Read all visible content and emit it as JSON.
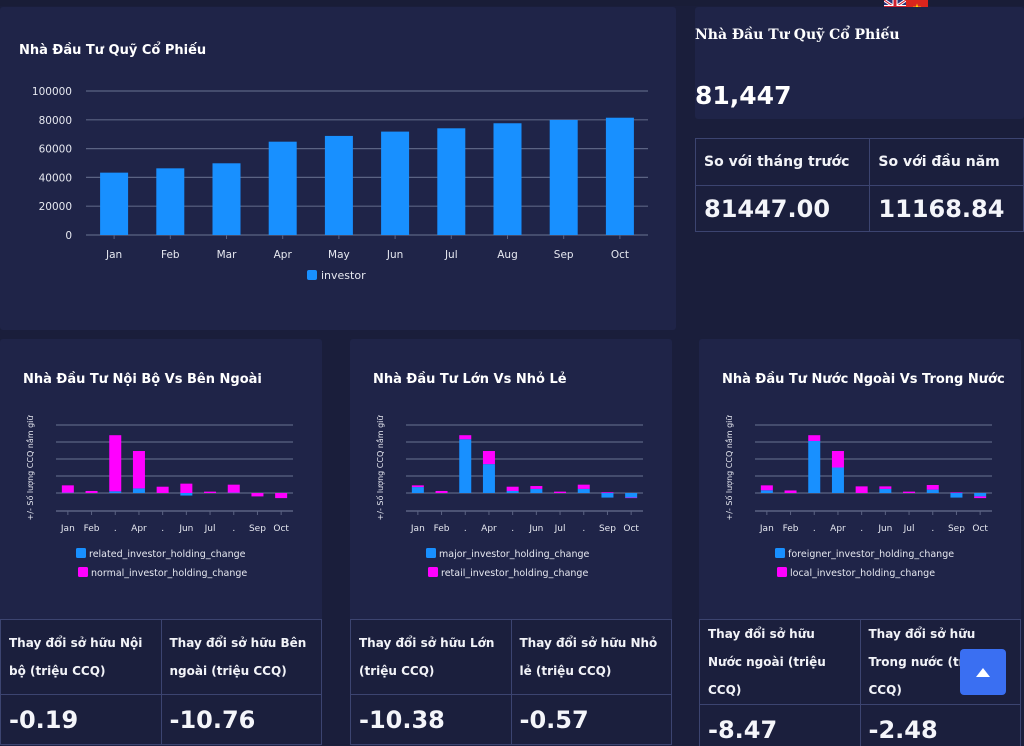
{
  "language_switch": [
    {
      "label": "English",
      "icon": "uk-flag-icon"
    },
    {
      "label": "Tiếng Việt",
      "icon": "vietnam-flag-icon"
    }
  ],
  "main_chart": {
    "title": "Nhà Đầu Tư Quỹ Cổ Phiếu"
  },
  "summary": {
    "title": "Nhà Đầu Tư Quỹ Cổ Phiếu",
    "value": "81,447",
    "table": {
      "headers": [
        "So với tháng trước",
        "So với đầu năm"
      ],
      "values": [
        "81447.00",
        "11168.84"
      ]
    }
  },
  "cards": [
    {
      "title": "Nhà Đầu Tư Nội Bộ Vs Bên Ngoài",
      "headers": [
        "Thay đổi sở hữu Nội bộ (triệu CCQ)",
        "Thay đổi sở hữu Bên ngoài (triệu CCQ)"
      ],
      "values": [
        "-0.19",
        "-10.76"
      ]
    },
    {
      "title": "Nhà Đầu Tư Lớn Vs Nhỏ Lẻ",
      "headers": [
        "Thay đổi sở hữu Lớn (triệu CCQ)",
        "Thay đổi sở hữu Nhỏ lẻ (triệu CCQ)"
      ],
      "values": [
        "-10.38",
        "-0.57"
      ]
    },
    {
      "title": "Nhà Đầu Tư Nước Ngoài Vs Trong Nước",
      "headers": [
        "Thay đổi sở hữu Nước ngoài (triệu CCQ)",
        "Thay đổi sở hữu Trong nước (triệu CCQ)"
      ],
      "values": [
        "-8.47",
        "-2.48"
      ]
    }
  ],
  "scroll_top": {
    "icon": "arrow-up-icon"
  },
  "colors": {
    "blue": "#1890ff",
    "magenta": "#ff00ff",
    "grid": "#5b6383",
    "tick_text": "#e6e8f0"
  },
  "chart_data": [
    {
      "type": "bar",
      "title": "Nhà Đầu Tư Quỹ Cổ Phiếu",
      "xlabel": "",
      "ylabel": "",
      "categories": [
        "Jan",
        "Feb",
        "Mar",
        "Apr",
        "May",
        "Jun",
        "Jul",
        "Aug",
        "Sep",
        "Oct"
      ],
      "series": [
        {
          "name": "investor",
          "color": "#1890ff",
          "values": [
            43300,
            46300,
            49800,
            64800,
            68800,
            71800,
            74100,
            77600,
            79900,
            81447
          ]
        }
      ],
      "ylim": [
        0,
        100000
      ],
      "yticks": [
        0,
        20000,
        40000,
        60000,
        80000,
        100000
      ],
      "grid": true,
      "legend": "bottom-center"
    },
    {
      "type": "bar",
      "stacked": true,
      "title": "Nhà Đầu Tư Nội Bộ Vs Bên Ngoài",
      "ylabel": "+/- Số lượng CCQ nắm giữ",
      "categories": [
        "Jan",
        "Feb",
        ".",
        "Apr",
        ".",
        "Jun",
        "Jul",
        ".",
        "Sep",
        "Oct"
      ],
      "series": [
        {
          "name": "related_investor_holding_change",
          "color": "#1890ff",
          "values": [
            0.02,
            0.0,
            0.1,
            0.27,
            0.0,
            -0.15,
            0.0,
            0.02,
            0.0,
            0.0
          ]
        },
        {
          "name": "normal_investor_holding_change",
          "color": "#ff00ff",
          "values": [
            0.43,
            0.12,
            3.3,
            2.2,
            0.37,
            0.55,
            0.08,
            0.47,
            -0.2,
            -0.3
          ]
        }
      ],
      "ylim": [
        -1,
        4
      ],
      "grid": true,
      "legend": "bottom-center"
    },
    {
      "type": "bar",
      "stacked": true,
      "title": "Nhà Đầu Tư Lớn Vs Nhỏ Lẻ",
      "ylabel": "+/- Số lượng CCQ nắm giữ",
      "categories": [
        "Jan",
        "Feb",
        ".",
        "Apr",
        ".",
        "Jun",
        "Jul",
        ".",
        "Sep",
        "Oct"
      ],
      "series": [
        {
          "name": "major_investor_holding_change",
          "color": "#1890ff",
          "values": [
            0.35,
            0.0,
            3.16,
            1.7,
            0.12,
            0.24,
            0.0,
            0.24,
            -0.27,
            -0.27
          ]
        },
        {
          "name": "retail_investor_holding_change",
          "color": "#ff00ff",
          "values": [
            0.1,
            0.12,
            0.24,
            0.77,
            0.25,
            0.17,
            0.08,
            0.25,
            0.04,
            -0.03
          ]
        }
      ],
      "ylim": [
        -1,
        4
      ],
      "grid": true,
      "legend": "bottom-center"
    },
    {
      "type": "bar",
      "stacked": true,
      "title": "Nhà Đầu Tư Nước Ngoài Vs Trong Nước",
      "ylabel": "+/- Số lượng CCQ nắm giữ",
      "categories": [
        "Jan",
        "Feb",
        ".",
        "Apr",
        ".",
        "Jun",
        "Jul",
        ".",
        "Sep",
        "Oct"
      ],
      "series": [
        {
          "name": "foreigner_investor_holding_change",
          "color": "#1890ff",
          "values": [
            0.16,
            0.0,
            3.06,
            1.5,
            0.0,
            0.24,
            0.0,
            0.2,
            -0.27,
            -0.2
          ]
        },
        {
          "name": "local_investor_holding_change",
          "color": "#ff00ff",
          "values": [
            0.29,
            0.15,
            0.34,
            0.97,
            0.39,
            0.15,
            0.08,
            0.27,
            0.03,
            -0.1
          ]
        }
      ],
      "ylim": [
        -1,
        4
      ],
      "grid": true,
      "legend": "bottom-center"
    }
  ]
}
